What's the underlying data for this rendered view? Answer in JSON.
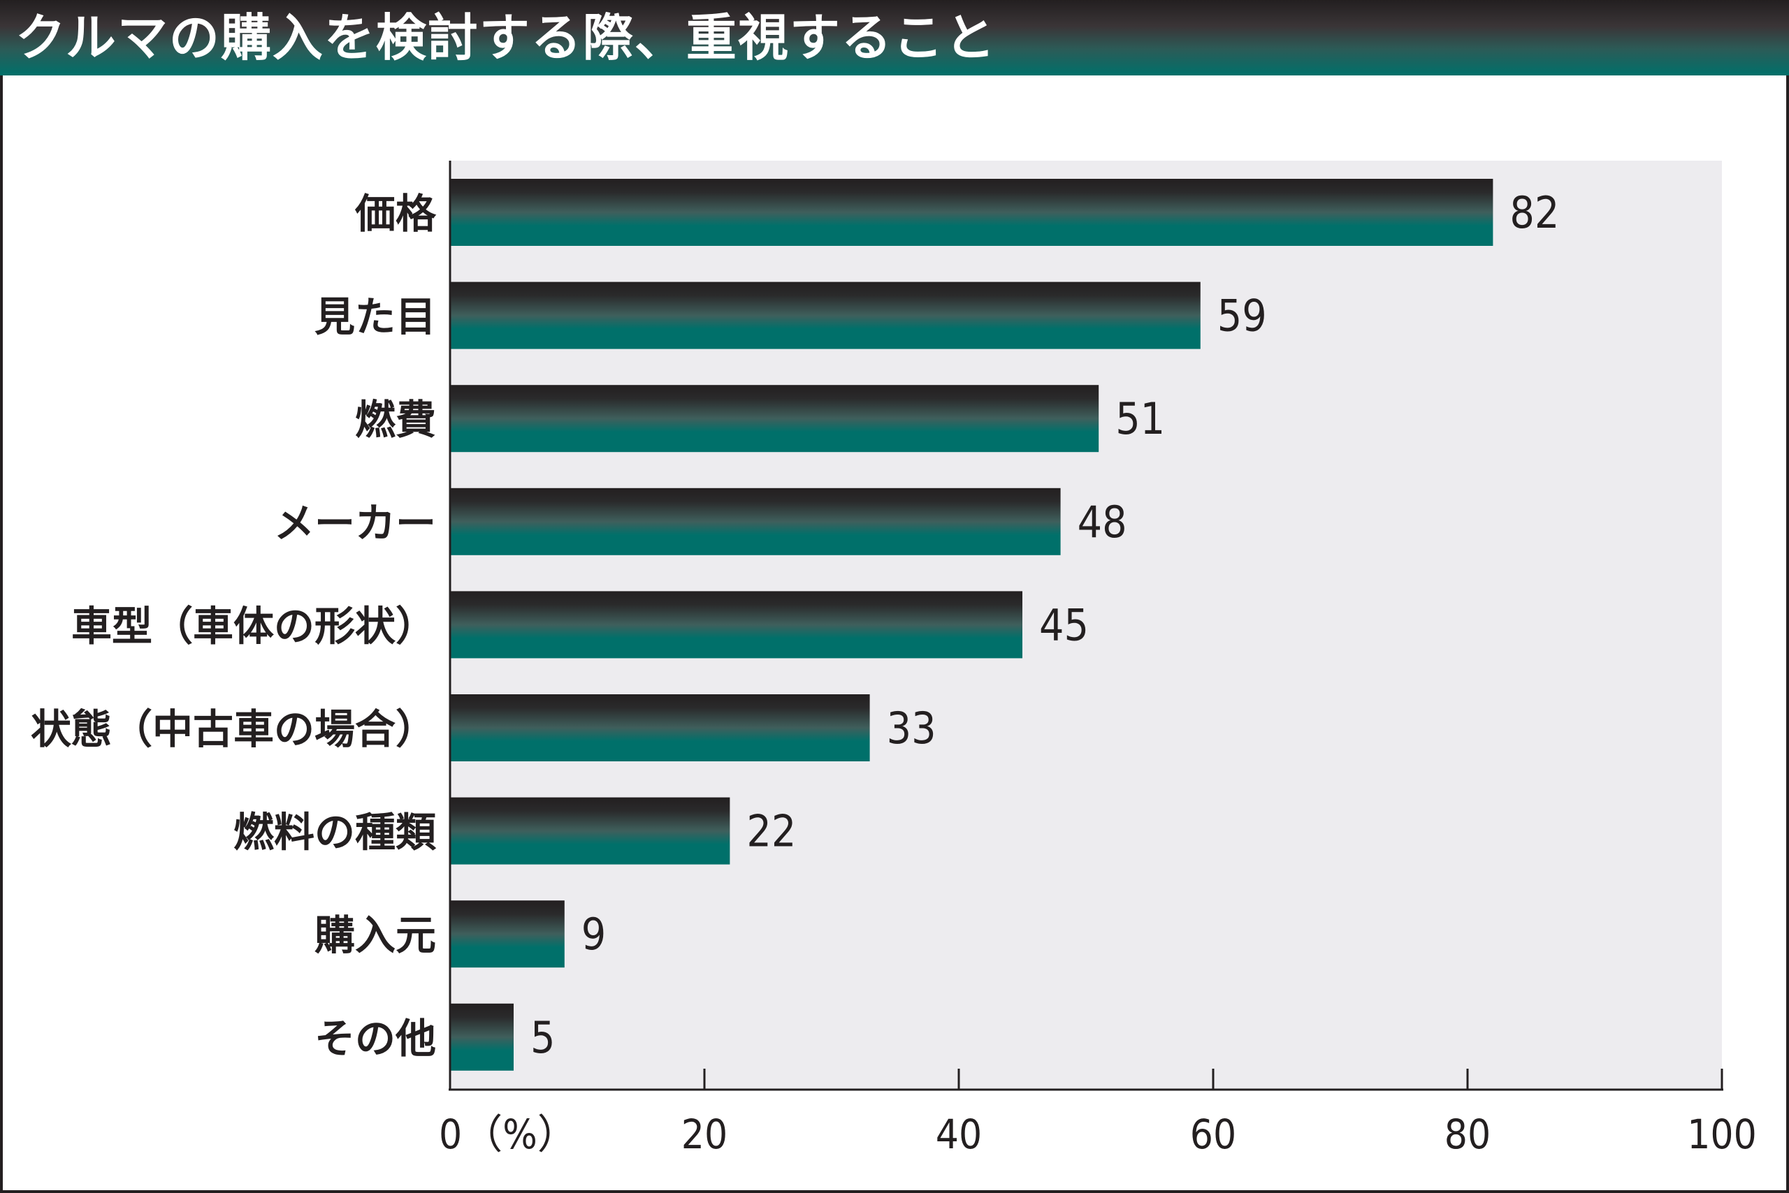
{
  "chart_data": {
    "type": "bar",
    "orientation": "horizontal",
    "title": "クルマの購入を検討する際、重視すること",
    "categories": [
      "価格",
      "見た目",
      "燃費",
      "メーカー",
      "車型（車体の形状）",
      "状態（中古車の場合）",
      "燃料の種類",
      "購入元",
      "その他"
    ],
    "values": [
      82,
      59,
      51,
      48,
      45,
      33,
      22,
      9,
      5
    ],
    "value_labels": [
      "82",
      "59",
      "51",
      "48",
      "45",
      "33",
      "22",
      "9",
      "5"
    ],
    "xlim": [
      0,
      100
    ],
    "x_ticks": [
      0,
      20,
      40,
      60,
      80,
      100
    ],
    "x_tick_labels": [
      "0（%）",
      "20",
      "40",
      "60",
      "80",
      "100"
    ],
    "xlabel": "",
    "ylabel": "",
    "grid": false,
    "legend": "none",
    "colors": {
      "bar_top": "#231f20",
      "bar_bottom": "#00706a",
      "plot_background": "#edecef",
      "title_text": "#ffffff",
      "axis": "#231f20",
      "text": "#231f20"
    }
  }
}
